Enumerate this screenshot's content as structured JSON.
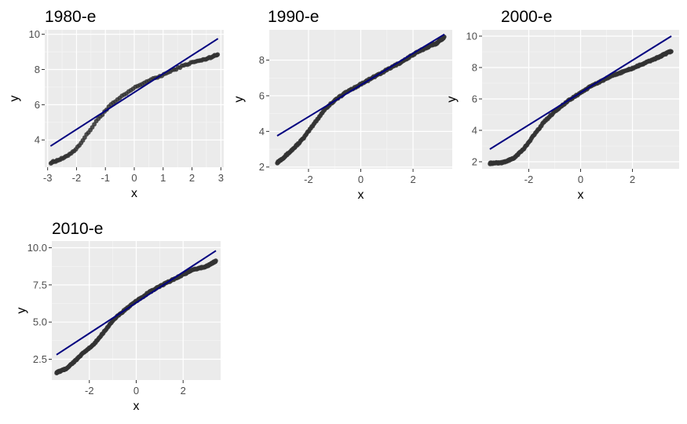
{
  "chart_data": [
    {
      "type": "scatter",
      "title": "1980-e",
      "xlabel": "x",
      "ylabel": "y",
      "xlim": [
        -3.1,
        3.1
      ],
      "ylim": [
        2.45,
        10.25
      ],
      "xticks": [
        -3,
        -2,
        -1,
        0,
        1,
        2,
        3
      ],
      "xtick_labels": [
        "-3",
        "-2",
        "-1",
        "0",
        "1",
        "2",
        "3"
      ],
      "yticks": [
        4,
        6,
        8,
        10
      ],
      "ytick_labels": [
        "4",
        "6",
        "8",
        "10"
      ],
      "grid": true,
      "legend": "none",
      "point_color": "#333333",
      "line_color": "#00007f",
      "n_points": 100,
      "points_curve": {
        "x": [
          -2.9,
          -2.4,
          -2.0,
          -1.6,
          -1.2,
          -0.8,
          -0.4,
          0.0,
          0.4,
          0.8,
          1.2,
          1.6,
          2.0,
          2.4,
          2.9
        ],
        "y": [
          2.7,
          3.0,
          3.5,
          4.4,
          5.3,
          6.0,
          6.5,
          6.95,
          7.3,
          7.55,
          7.85,
          8.15,
          8.4,
          8.55,
          8.85
        ]
      },
      "ref_line": {
        "x": [
          -2.9,
          2.9
        ],
        "y": [
          3.65,
          9.75
        ]
      }
    },
    {
      "type": "scatter",
      "title": "1990-e",
      "xlabel": "x",
      "ylabel": "y",
      "xlim": [
        -3.5,
        3.5
      ],
      "ylim": [
        1.9,
        9.7
      ],
      "xticks": [
        -2,
        0,
        2
      ],
      "xtick_labels": [
        "-2",
        "0",
        "2"
      ],
      "yticks": [
        2,
        4,
        6,
        8
      ],
      "ytick_labels": [
        "2",
        "4",
        "6",
        "8"
      ],
      "grid": true,
      "legend": "none",
      "point_color": "#333333",
      "line_color": "#00007f",
      "n_points": 200,
      "points_curve": {
        "x": [
          -3.2,
          -2.9,
          -2.6,
          -2.2,
          -1.8,
          -1.4,
          -1.0,
          -0.5,
          0.0,
          0.5,
          1.0,
          1.5,
          2.0,
          2.5,
          2.9,
          3.2
        ],
        "y": [
          2.25,
          2.6,
          3.0,
          3.6,
          4.4,
          5.2,
          5.75,
          6.25,
          6.65,
          7.05,
          7.45,
          7.85,
          8.3,
          8.7,
          8.95,
          9.3
        ]
      },
      "ref_line": {
        "x": [
          -3.2,
          3.2
        ],
        "y": [
          3.75,
          9.45
        ]
      }
    },
    {
      "type": "scatter",
      "title": "2000-e",
      "xlabel": "x",
      "ylabel": "y",
      "xlim": [
        -3.8,
        3.8
      ],
      "ylim": [
        1.55,
        10.4
      ],
      "xticks": [
        -2,
        0,
        2
      ],
      "xtick_labels": [
        "-2",
        "0",
        "2"
      ],
      "yticks": [
        2,
        4,
        6,
        8,
        10
      ],
      "ytick_labels": [
        "2",
        "4",
        "6",
        "8",
        "10"
      ],
      "grid": true,
      "legend": "none",
      "point_color": "#333333",
      "line_color": "#00007f",
      "n_points": 250,
      "points_curve": {
        "x": [
          -3.5,
          -3.0,
          -2.6,
          -2.2,
          -1.8,
          -1.4,
          -1.0,
          -0.5,
          0.0,
          0.5,
          1.0,
          1.5,
          2.0,
          2.5,
          3.0,
          3.5
        ],
        "y": [
          1.9,
          1.95,
          2.2,
          2.8,
          3.7,
          4.55,
          5.2,
          5.85,
          6.4,
          6.9,
          7.3,
          7.65,
          7.95,
          8.3,
          8.65,
          9.05
        ]
      },
      "ref_line": {
        "x": [
          -3.5,
          3.5
        ],
        "y": [
          2.8,
          10.0
        ]
      }
    },
    {
      "type": "scatter",
      "title": "2010-e",
      "xlabel": "x",
      "ylabel": "y",
      "xlim": [
        -3.6,
        3.6
      ],
      "ylim": [
        1.1,
        10.45
      ],
      "xticks": [
        -2,
        0,
        2
      ],
      "xtick_labels": [
        "-2",
        "0",
        "2"
      ],
      "yticks": [
        2.5,
        5.0,
        7.5,
        10.0
      ],
      "ytick_labels": [
        "2.5",
        "5.0",
        "7.5",
        "10.0"
      ],
      "grid": true,
      "legend": "none",
      "point_color": "#333333",
      "line_color": "#00007f",
      "n_points": 250,
      "points_curve": {
        "x": [
          -3.4,
          -3.0,
          -2.6,
          -2.2,
          -1.8,
          -1.4,
          -1.0,
          -0.5,
          0.0,
          0.5,
          1.0,
          1.5,
          2.0,
          2.5,
          3.0,
          3.4
        ],
        "y": [
          1.6,
          1.85,
          2.4,
          3.0,
          3.5,
          4.3,
          5.1,
          5.8,
          6.4,
          6.95,
          7.4,
          7.8,
          8.2,
          8.55,
          8.75,
          9.1
        ]
      },
      "ref_line": {
        "x": [
          -3.4,
          3.4
        ],
        "y": [
          2.8,
          9.8
        ]
      }
    }
  ]
}
